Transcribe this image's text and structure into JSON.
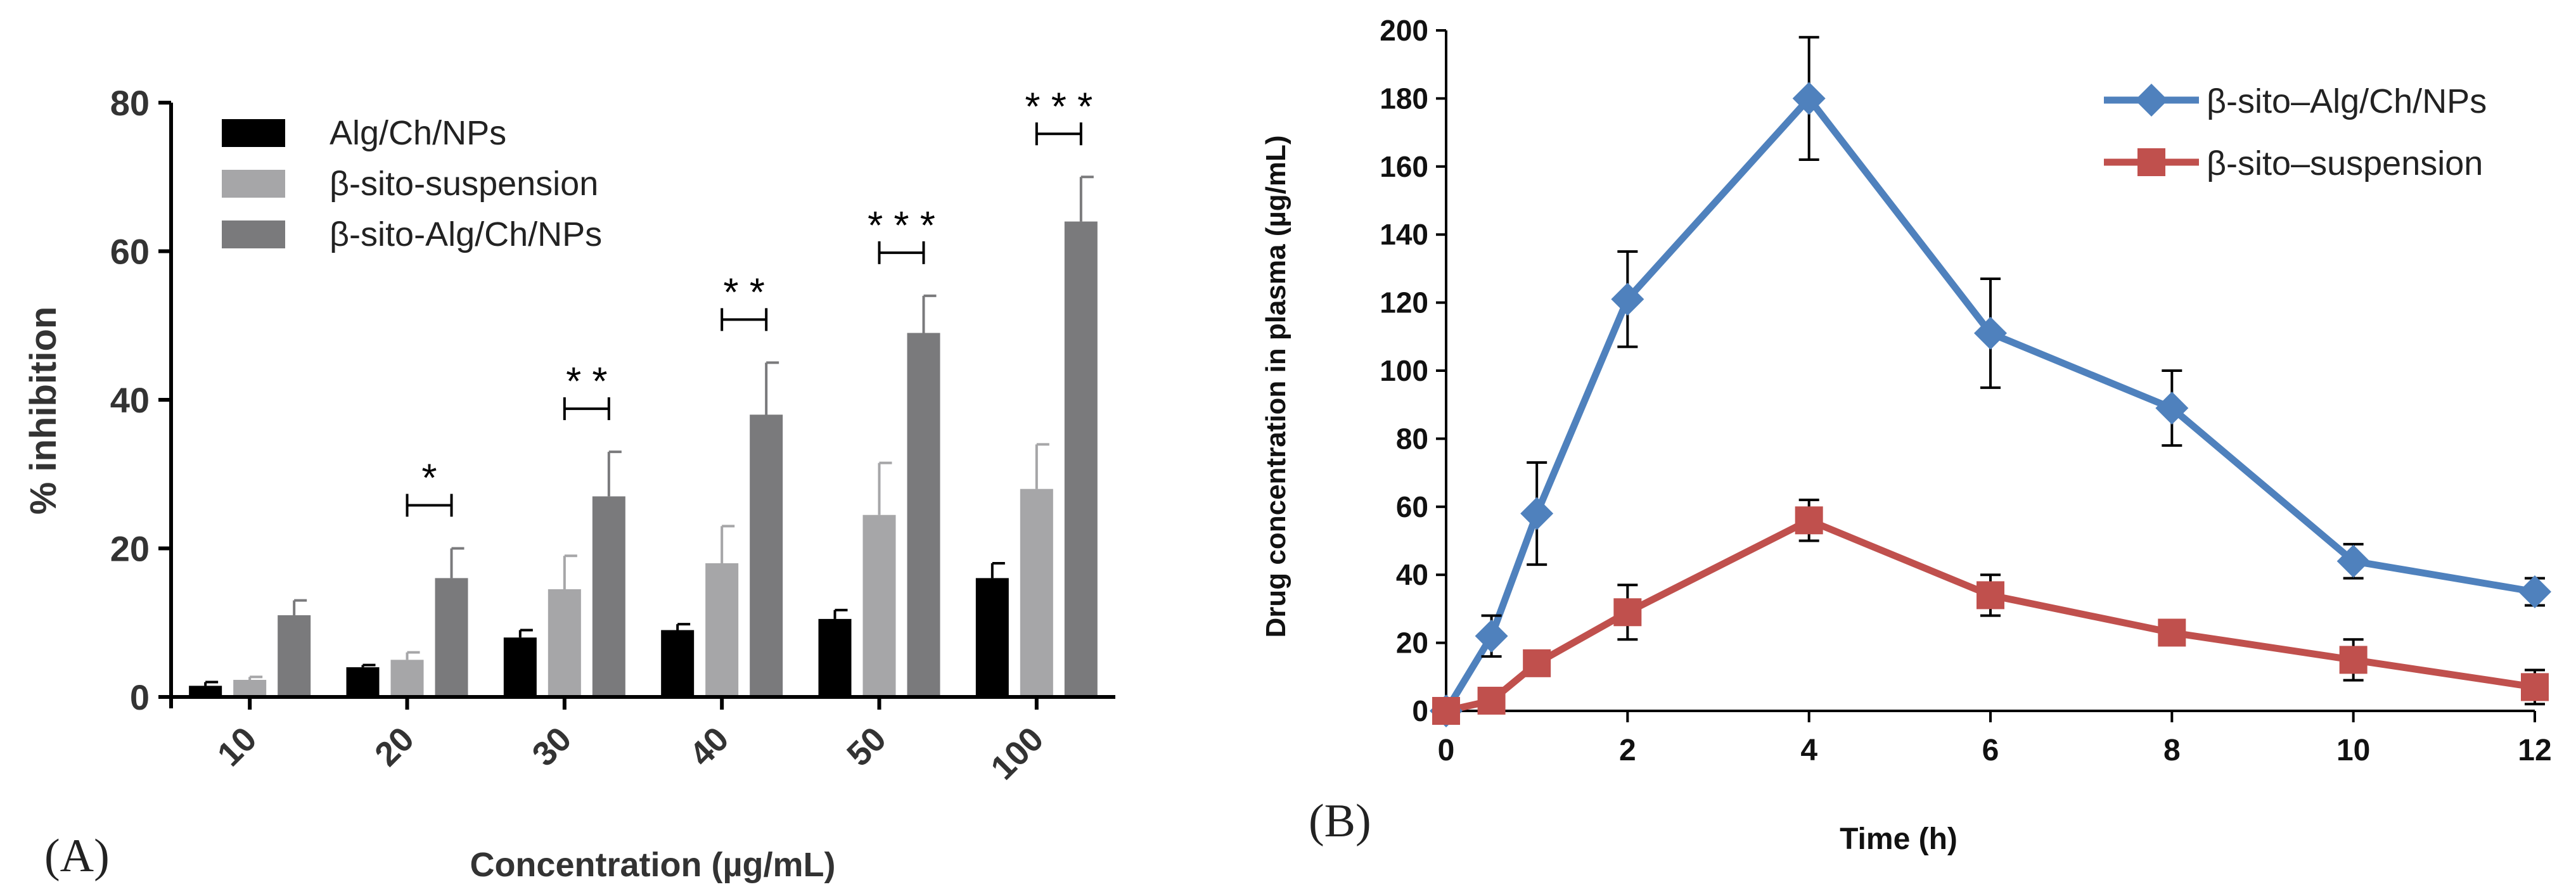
{
  "panel_a": {
    "label": "(A)",
    "chart_data": {
      "type": "bar",
      "xlabel": "Concentration (µg/mL)",
      "ylabel": "% inhibition",
      "categories": [
        "10",
        "20",
        "30",
        "40",
        "50",
        "100"
      ],
      "ylim": [
        0,
        80
      ],
      "yticks": [
        "0",
        "20",
        "40",
        "60",
        "80"
      ],
      "legend_position": "top-left",
      "grid": false,
      "series": [
        {
          "name": "Alg/Ch/NPs",
          "color": "#000000",
          "values": [
            1.5,
            4,
            8,
            9,
            10.5,
            16
          ],
          "errors": [
            0.5,
            0.3,
            1,
            0.8,
            1.2,
            2
          ]
        },
        {
          "name": "β-sito-suspension",
          "color": "#a6a6a8",
          "values": [
            2.3,
            5,
            14.5,
            18,
            24.5,
            28
          ],
          "errors": [
            0.4,
            1,
            4.5,
            5,
            7,
            6
          ]
        },
        {
          "name": "β-sito-Alg/Ch/NPs",
          "color": "#7a7a7c",
          "values": [
            11,
            16,
            27,
            38,
            49,
            64
          ],
          "errors": [
            2,
            4,
            6,
            7,
            5,
            6
          ]
        }
      ],
      "significance": [
        {
          "category": "20",
          "stars": "*"
        },
        {
          "category": "30",
          "stars": "* *"
        },
        {
          "category": "40",
          "stars": "* *"
        },
        {
          "category": "50",
          "stars": "* * *"
        },
        {
          "category": "100",
          "stars": "* * *"
        }
      ]
    }
  },
  "panel_b": {
    "label": "(B)",
    "chart_data": {
      "type": "line",
      "xlabel": "Time (h)",
      "ylabel": "Drug concentration in plasma (µg/mL)",
      "xlim": [
        0,
        12
      ],
      "ylim": [
        0,
        200
      ],
      "xticks": [
        "0",
        "2",
        "4",
        "6",
        "8",
        "10",
        "12"
      ],
      "yticks": [
        "0",
        "20",
        "40",
        "60",
        "80",
        "100",
        "120",
        "140",
        "160",
        "180",
        "200"
      ],
      "legend_position": "top-right",
      "grid": false,
      "series": [
        {
          "name": "β-sito–Alg/Ch/NPs",
          "color": "#4f81bd",
          "marker": "diamond",
          "x": [
            0,
            0.5,
            1,
            2,
            4,
            6,
            8,
            10,
            12
          ],
          "y": [
            0,
            22,
            58,
            121,
            180,
            111,
            89,
            44,
            35
          ],
          "errors": [
            0,
            6,
            15,
            14,
            18,
            16,
            11,
            5,
            4
          ]
        },
        {
          "name": "β-sito–suspension",
          "color": "#c0504d",
          "marker": "square",
          "x": [
            0,
            0.5,
            1,
            2,
            4,
            6,
            8,
            10,
            12
          ],
          "y": [
            0,
            3,
            14,
            29,
            56,
            34,
            23,
            15,
            7
          ],
          "errors": [
            0,
            1,
            2,
            8,
            6,
            6,
            2,
            6,
            5
          ]
        }
      ]
    }
  }
}
